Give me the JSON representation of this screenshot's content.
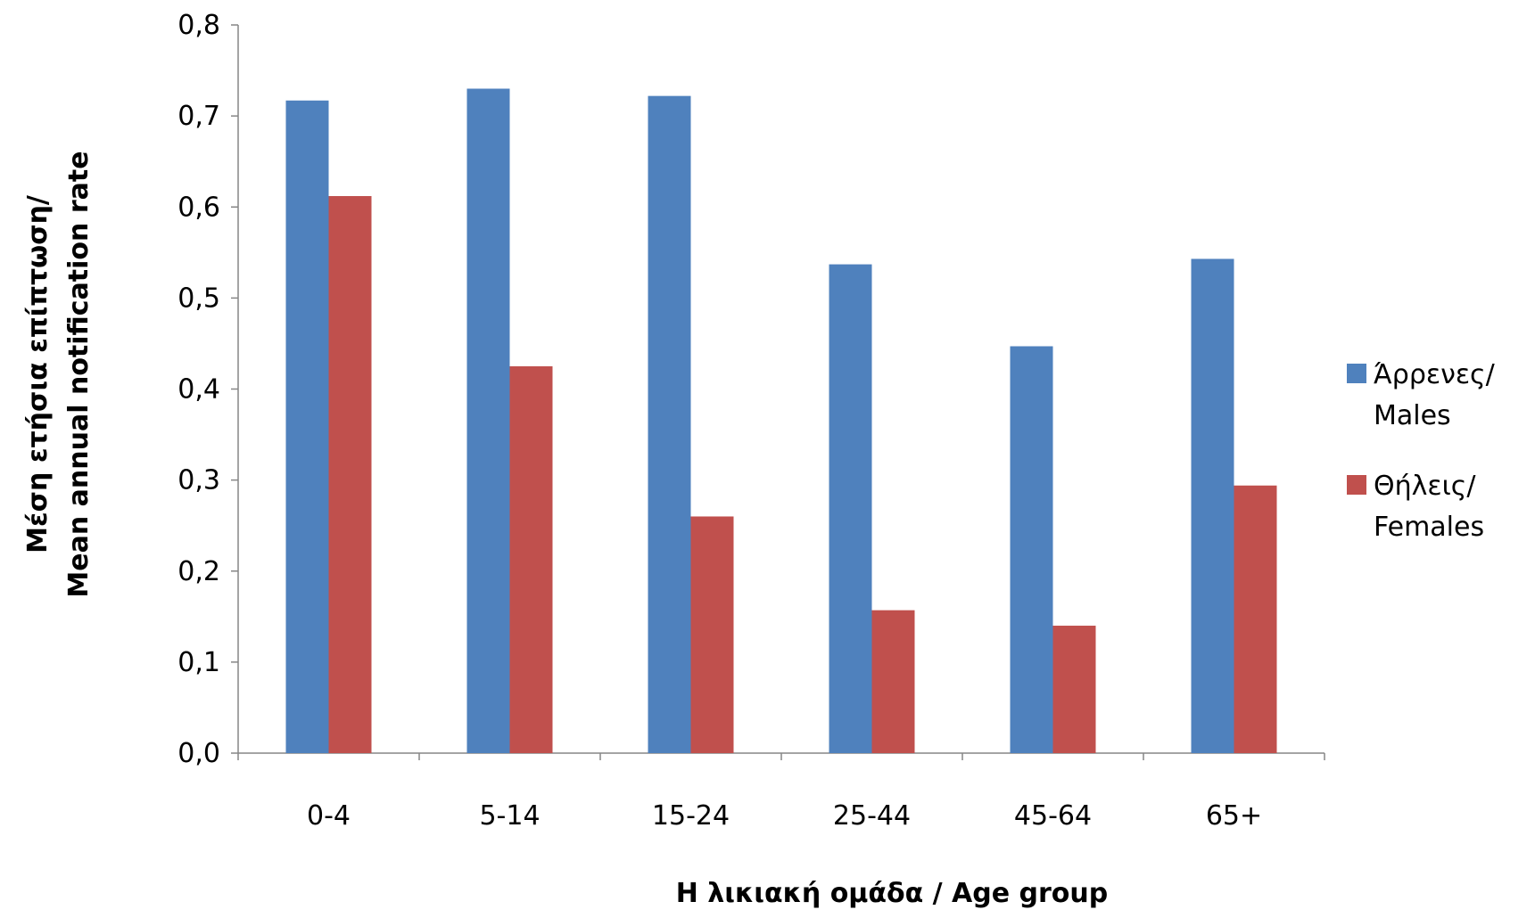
{
  "chart_data": {
    "type": "bar",
    "categories": [
      "0-4",
      "5-14",
      "15-24",
      "25-44",
      "45-64",
      "65+"
    ],
    "series": [
      {
        "name": [
          "Άρρενες/",
          "Males"
        ],
        "color": "#4F81BD",
        "values": [
          0.717,
          0.73,
          0.722,
          0.537,
          0.447,
          0.543
        ]
      },
      {
        "name": [
          "Θήλεις/",
          "Females"
        ],
        "color": "#C0504D",
        "values": [
          0.612,
          0.425,
          0.26,
          0.157,
          0.14,
          0.294
        ]
      }
    ],
    "title": "",
    "xlabel": "Η λικιακή ομάδα / Age group",
    "ylabel": [
      "Μέση ετήσια επίπτωση/",
      "Mean annual notification rate"
    ],
    "ylim": [
      0,
      0.8
    ],
    "yticks": [
      "0,0",
      "0,1",
      "0,2",
      "0,3",
      "0,4",
      "0,5",
      "0,6",
      "0,7",
      "0,8"
    ],
    "grid": false,
    "legend_position": "right"
  }
}
